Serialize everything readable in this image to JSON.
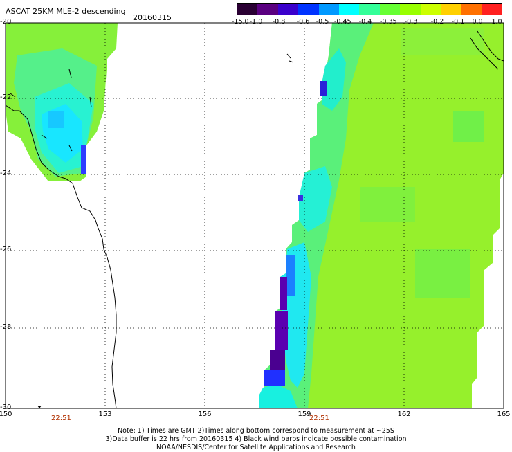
{
  "title": "ASCAT 25KM MLE-2 descending",
  "date": "20160315",
  "colorbar": {
    "labels": [
      "-15.0",
      "-1.0",
      "-0.8",
      "-0.6",
      "-0.5",
      "-0.45",
      "-0.4",
      "-0.35",
      "-0.3",
      "-0.2",
      "-0.1",
      "0.0",
      "1.0"
    ],
    "colors": [
      "#2a0033",
      "#5a0080",
      "#3a00cc",
      "#0033ff",
      "#0099ff",
      "#00ffff",
      "#33ff99",
      "#66ff33",
      "#99ff00",
      "#ccff00",
      "#ffd000",
      "#ff7000",
      "#ff2020"
    ]
  },
  "axes": {
    "lon_labels": [
      "150",
      "153",
      "156",
      "159",
      "162",
      "165"
    ],
    "lat_labels": [
      "-20",
      "-22",
      "-24",
      "-26",
      "-28",
      "-30"
    ]
  },
  "pass_times": [
    "22:51",
    "22:51"
  ],
  "note": {
    "line1": "Note: 1) Times are GMT 2)Times along bottom correspond to measurement at ~25S",
    "line2": "3)Data buffer is 22 hrs from 20160315 4) Black wind barbs indicate possible contamination",
    "line3": "NOAA/NESDIS/Center for Satellite Applications and Research"
  }
}
